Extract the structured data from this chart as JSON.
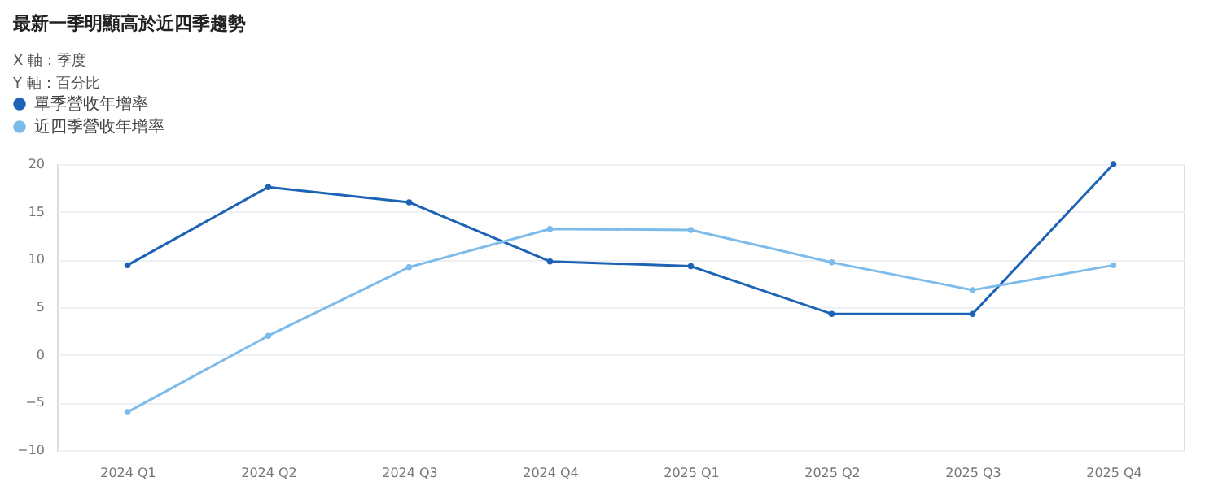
{
  "chart_data": {
    "type": "line",
    "title": "最新一季明顯高於近四季趨勢",
    "annotations": [
      "X 軸：季度",
      "Y 軸：百分比"
    ],
    "categories": [
      "2024 Q1",
      "2024 Q2",
      "2024 Q3",
      "2024 Q4",
      "2025 Q1",
      "2025 Q2",
      "2025 Q3",
      "2025 Q4"
    ],
    "series": [
      {
        "name": "單季營收年增率",
        "color": "#1c63b5",
        "values": [
          9.4,
          17.6,
          16.0,
          9.8,
          9.3,
          4.3,
          4.3,
          20.0
        ]
      },
      {
        "name": "近四季營收年增率",
        "color": "#7dbbea",
        "values": [
          -6.0,
          2.0,
          9.2,
          13.2,
          13.1,
          9.7,
          6.8,
          9.4
        ]
      }
    ],
    "ylim": [
      -10,
      20
    ],
    "yticks": [
      -10,
      -5,
      0,
      5,
      10,
      15,
      20
    ],
    "grid": "y",
    "legend": "top left",
    "marker": "circle",
    "line_style": "solid"
  }
}
